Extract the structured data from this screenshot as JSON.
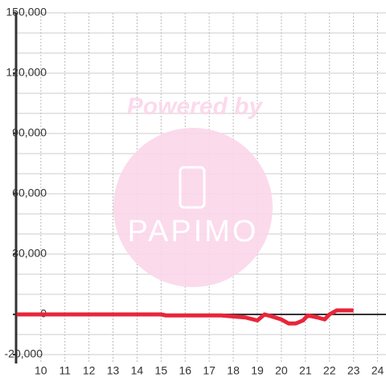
{
  "chart_data": {
    "type": "line",
    "series": [
      {
        "color": "#e8253a",
        "x": [
          9,
          10,
          11,
          12,
          13,
          14,
          15,
          15.2,
          16,
          17,
          17.5,
          18,
          18.5,
          19,
          19.3,
          19.6,
          20,
          20.3,
          20.6,
          20.9,
          21.1,
          21.5,
          21.8,
          22,
          22.3,
          23
        ],
        "values": [
          0,
          0,
          0,
          0,
          0,
          0,
          0,
          -500,
          -500,
          -500,
          -500,
          -1000,
          -1500,
          -3000,
          0,
          -1000,
          -2500,
          -4500,
          -4500,
          -3000,
          -500,
          -1500,
          -2500,
          0,
          2000,
          2000
        ]
      }
    ],
    "xlim": [
      8.97,
      24.35
    ],
    "xticks": [
      10,
      11,
      12,
      13,
      14,
      15,
      16,
      17,
      18,
      19,
      20,
      21,
      22,
      23,
      24
    ],
    "ylim": [
      -20000,
      150000
    ],
    "yticks": [
      {
        "value": -20000,
        "label": "-20,000"
      },
      0,
      {
        "value": 30000,
        "label": "30,000"
      },
      {
        "value": 60000,
        "label": "60,000"
      },
      {
        "value": 90000,
        "label": "90,000"
      },
      {
        "value": 120000,
        "label": "120,000"
      },
      {
        "value": 150000,
        "label": "150,000"
      }
    ],
    "y_minor_ticks": [
      -10000,
      10000,
      20000,
      40000,
      50000,
      70000,
      80000,
      100000,
      110000,
      130000,
      140000
    ],
    "grid": true
  },
  "watermark": {
    "line1": "Powered by",
    "logo": "PAPIMO"
  }
}
